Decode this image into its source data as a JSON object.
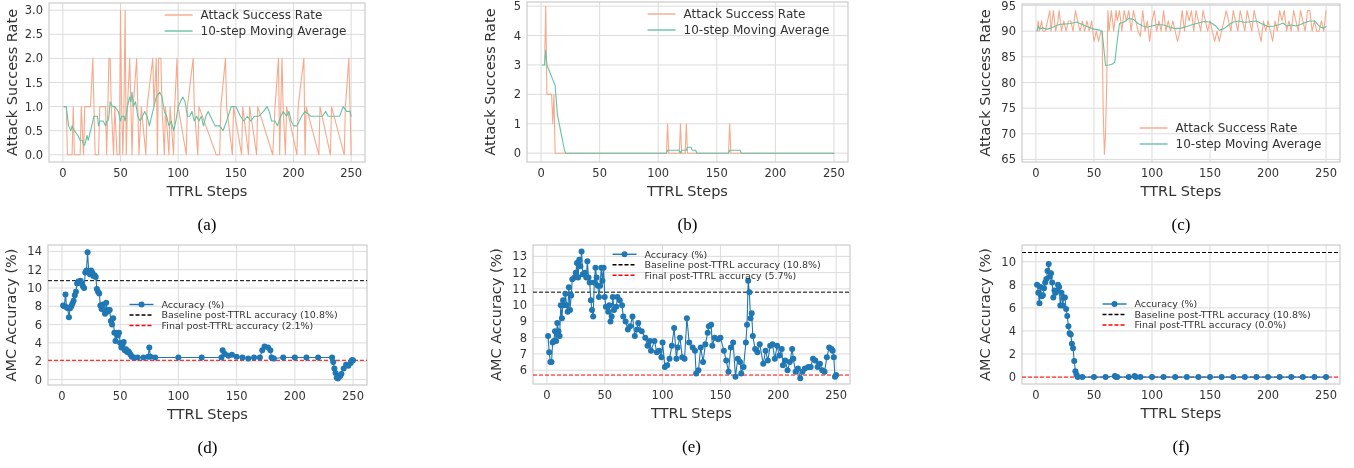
{
  "chart_data": [
    {
      "type": "line",
      "xlabel": "TTRL Steps",
      "ylabel": "Attack Success Rate",
      "xlim": [
        -12,
        262
      ],
      "xticks": [
        0,
        50,
        100,
        150,
        200,
        250
      ],
      "ylim": [
        -0.15,
        3.15
      ],
      "yticks": [
        {
          "value": 0,
          "label": "0.0"
        },
        {
          "value": 0.5,
          "label": "0.5"
        },
        {
          "value": 1,
          "label": "1.0"
        },
        {
          "value": 1.5,
          "label": "1.5"
        },
        {
          "value": 2,
          "label": "2.0"
        },
        {
          "value": 2.5,
          "label": "2.5"
        },
        {
          "value": 3,
          "label": "3.0"
        }
      ],
      "grid": true,
      "legend": "top right",
      "annotations": [
        "(a)"
      ],
      "series": [
        {
          "name": "Attack Success Rate",
          "color": "#f7a98b",
          "x": [
            1,
            3,
            4,
            8,
            9,
            10,
            15,
            16,
            18,
            19,
            24,
            26,
            27,
            28,
            31,
            32,
            37,
            38,
            39,
            40,
            41,
            42,
            44,
            45,
            47,
            49,
            50,
            51,
            52,
            53,
            54,
            55,
            56,
            58,
            59,
            60,
            61,
            64,
            65,
            66,
            68,
            72,
            73,
            78,
            79,
            81,
            82,
            83,
            85,
            86,
            88,
            89,
            92,
            93,
            96,
            97,
            99,
            100,
            107,
            108,
            113,
            114,
            117,
            118,
            133,
            136,
            137,
            141,
            142,
            147,
            148,
            155,
            156,
            161,
            162,
            168,
            169,
            182,
            184,
            187,
            188,
            190,
            191,
            193,
            194,
            203,
            204,
            209,
            210,
            211,
            222,
            223,
            232,
            233,
            244,
            245,
            248,
            249,
            250
          ],
          "values": [
            1,
            1,
            0,
            0,
            1,
            0,
            0,
            1,
            0,
            1,
            1,
            2,
            1,
            0,
            0,
            1,
            1,
            0,
            1,
            2,
            2,
            1,
            0,
            1,
            0,
            0,
            3,
            1,
            0,
            1,
            3,
            0,
            1,
            2,
            1,
            0,
            1,
            2,
            1,
            0,
            1,
            0,
            1,
            2,
            1,
            2,
            0,
            2,
            2,
            1,
            0,
            1,
            0,
            1,
            0,
            1,
            2,
            1,
            0,
            1,
            2,
            1,
            0,
            1,
            0,
            0,
            1,
            2,
            1,
            0,
            1,
            0,
            1,
            0,
            1,
            0,
            1,
            0,
            1,
            2,
            0,
            2,
            1,
            0,
            1,
            0,
            1,
            2,
            0,
            1,
            0,
            1,
            0,
            1,
            0,
            1,
            2,
            1,
            0
          ]
        },
        {
          "name": "10-step Moving Average",
          "color": "#66c2a5",
          "x": [
            1,
            3,
            5,
            7,
            8,
            10,
            13,
            15,
            17,
            18,
            19,
            21,
            22,
            25,
            27,
            30,
            31,
            32,
            35,
            37,
            38,
            39,
            40,
            41,
            43,
            45,
            48,
            50,
            51,
            53,
            54,
            56,
            58,
            59,
            60,
            61,
            63,
            65,
            67,
            69,
            71,
            73,
            75,
            77,
            79,
            81,
            84,
            86,
            88,
            90,
            92,
            94,
            96,
            98,
            100,
            102,
            104,
            106,
            108,
            110,
            112,
            114,
            116,
            118,
            120,
            122,
            124,
            126,
            128,
            132,
            136,
            139,
            142,
            146,
            150,
            154,
            157,
            160,
            163,
            166,
            170,
            174,
            177,
            179,
            181,
            184,
            186,
            189,
            191,
            194,
            196,
            198,
            200,
            203,
            207,
            210,
            215,
            225,
            228,
            230,
            240,
            243,
            246,
            249,
            250
          ],
          "values": [
            1,
            1,
            0.6,
            0.5,
            0.6,
            0.5,
            0.4,
            0.3,
            0.3,
            0.2,
            0.2,
            0.4,
            0.3,
            0.6,
            0.8,
            0.8,
            0.6,
            0.7,
            0.7,
            0.6,
            0.7,
            0.7,
            0.8,
            1.1,
            1.0,
            1.0,
            0.9,
            0.7,
            0.8,
            0.8,
            0.7,
            1.0,
            1.2,
            1.1,
            1.3,
            1.0,
            1.1,
            0.8,
            0.7,
            0.8,
            0.9,
            0.8,
            0.6,
            0.8,
            1.0,
            1.2,
            1.3,
            1.2,
            0.9,
            0.8,
            0.6,
            0.7,
            0.5,
            0.7,
            1.0,
            1.1,
            1.2,
            1.1,
            0.8,
            0.8,
            0.9,
            0.7,
            0.8,
            0.7,
            0.8,
            0.6,
            0.8,
            0.9,
            0.8,
            0.6,
            0.6,
            0.5,
            0.7,
            1.0,
            1.0,
            0.8,
            0.7,
            0.8,
            0.7,
            0.8,
            0.8,
            0.9,
            1.0,
            0.9,
            0.7,
            0.7,
            0.6,
            0.8,
            0.9,
            0.8,
            0.9,
            0.7,
            0.6,
            0.6,
            0.8,
            0.9,
            0.8,
            0.8,
            0.9,
            0.8,
            0.8,
            1.0,
            0.9,
            0.9,
            0.8
          ]
        }
      ]
    },
    {
      "type": "line",
      "xlabel": "TTRL Steps",
      "ylabel": "Attack Success Rate",
      "xlim": [
        -12,
        262
      ],
      "xticks": [
        0,
        50,
        100,
        150,
        200,
        250
      ],
      "ylim": [
        -0.3,
        5.14
      ],
      "yticks": [
        0,
        1,
        2,
        3,
        4,
        5
      ],
      "grid": true,
      "legend": "top right",
      "annotations": [
        "(b)"
      ],
      "series": [
        {
          "name": "Attack Success Rate",
          "color": "#f7a98b",
          "x": [
            3,
            4,
            5,
            9,
            10,
            11,
            12,
            107,
            108,
            109,
            118,
            119,
            120,
            123,
            124,
            125,
            160,
            161,
            162,
            250
          ],
          "values": [
            3,
            5,
            2,
            2,
            1,
            2,
            0,
            0,
            1,
            0,
            0,
            1,
            0,
            0,
            1,
            0,
            0,
            1,
            0,
            0
          ]
        },
        {
          "name": "10-step Moving Average",
          "color": "#66c2a5",
          "x": [
            1,
            3,
            4,
            5,
            8,
            10,
            12,
            14,
            17,
            20,
            21,
            107,
            108,
            118,
            119,
            120,
            124,
            125,
            128,
            129,
            132,
            133,
            160,
            161,
            170,
            171,
            250
          ],
          "values": [
            3,
            3,
            3.5,
            3,
            2.7,
            2.5,
            2.3,
            1.3,
            0.7,
            0.1,
            0,
            0,
            0.1,
            0.1,
            0,
            0.1,
            0.1,
            0.2,
            0.2,
            0.1,
            0.1,
            0,
            0,
            0.1,
            0.1,
            0,
            0
          ]
        }
      ]
    },
    {
      "type": "line",
      "xlabel": "TTRL Steps",
      "ylabel": "Attack Success Rate",
      "xlim": [
        -12,
        262
      ],
      "xticks": [
        0,
        50,
        100,
        150,
        200,
        250
      ],
      "ylim": [
        64.5,
        95.3
      ],
      "yticks": [
        65,
        70,
        75,
        80,
        85,
        90,
        95
      ],
      "grid": true,
      "legend": "bottom right",
      "annotations": [
        "(c)"
      ],
      "series": [
        {
          "name": "Attack Success Rate",
          "color": "#f7a98b",
          "x": [
            1,
            2,
            3,
            5,
            6,
            8,
            10,
            12,
            13,
            15,
            17,
            19,
            20,
            22,
            24,
            26,
            28,
            30,
            32,
            34,
            36,
            38,
            40,
            42,
            44,
            46,
            48,
            50,
            52,
            54,
            56,
            57,
            58,
            59,
            60,
            61,
            62,
            63,
            65,
            67,
            69,
            70,
            72,
            74,
            76,
            78,
            80,
            82,
            84,
            86,
            88,
            90,
            92,
            94,
            96,
            98,
            100,
            102,
            104,
            106,
            108,
            110,
            112,
            114,
            116,
            118,
            120,
            122,
            124,
            126,
            128,
            130,
            132,
            134,
            136,
            138,
            140,
            142,
            144,
            146,
            148,
            150,
            152,
            154,
            156,
            158,
            160,
            162,
            164,
            166,
            168,
            170,
            172,
            174,
            176,
            178,
            180,
            182,
            184,
            186,
            188,
            190,
            192,
            194,
            196,
            198,
            200,
            202,
            204,
            206,
            208,
            210,
            212,
            214,
            216,
            218,
            220,
            222,
            224,
            226,
            228,
            230,
            232,
            234,
            236,
            238,
            240,
            242,
            244,
            246,
            248,
            250
          ],
          "values": [
            90,
            92,
            90,
            92,
            90,
            90,
            92,
            94,
            90,
            94,
            90,
            92,
            94,
            90,
            92,
            90,
            92,
            92,
            90,
            94,
            92,
            90,
            92,
            90,
            92,
            90,
            92,
            88,
            90,
            88,
            90,
            90,
            74,
            66,
            70,
            80,
            94,
            90,
            94,
            90,
            94,
            92,
            94,
            90,
            94,
            92,
            94,
            90,
            94,
            92,
            90,
            89,
            94,
            90,
            92,
            88,
            92,
            94,
            90,
            92,
            90,
            94,
            90,
            92,
            90,
            92,
            90,
            88,
            90,
            94,
            90,
            94,
            92,
            94,
            90,
            94,
            92,
            90,
            94,
            92,
            90,
            92,
            90,
            88,
            90,
            88,
            90,
            92,
            94,
            92,
            90,
            94,
            92,
            90,
            94,
            92,
            90,
            94,
            92,
            90,
            94,
            92,
            90,
            88,
            92,
            90,
            92,
            90,
            88,
            92,
            90,
            94,
            92,
            94,
            90,
            92,
            90,
            94,
            92,
            90,
            94,
            92,
            90,
            94,
            94,
            90,
            92,
            90,
            90,
            92,
            90,
            94
          ]
        },
        {
          "name": "10-step Moving Average",
          "color": "#66c2a5",
          "x": [
            1,
            2,
            3,
            6,
            10,
            15,
            20,
            25,
            30,
            35,
            40,
            45,
            50,
            55,
            57,
            60,
            63,
            66,
            68,
            70,
            72,
            76,
            80,
            84,
            88,
            92,
            96,
            100,
            105,
            110,
            115,
            120,
            125,
            130,
            135,
            140,
            145,
            150,
            155,
            158,
            162,
            166,
            170,
            175,
            180,
            185,
            190,
            195,
            200,
            205,
            210,
            213,
            216,
            220,
            224,
            228,
            232,
            236,
            240,
            245,
            248,
            250
          ],
          "values": [
            90,
            91,
            90.5,
            90.6,
            90.4,
            90.8,
            91.3,
            91.4,
            91.5,
            91.8,
            91.3,
            90.8,
            90.4,
            90.2,
            90,
            83.3,
            83.4,
            83.6,
            84,
            88,
            91.5,
            91.8,
            92.5,
            92.3,
            91.5,
            91.0,
            90.8,
            91.0,
            91.3,
            91.2,
            90.8,
            90.5,
            90.6,
            90.9,
            91.3,
            91.6,
            91.9,
            91.8,
            91,
            90.2,
            90.5,
            91.2,
            91.8,
            92,
            91.7,
            91.9,
            92.0,
            91.4,
            90.9,
            91.0,
            91.3,
            91.6,
            91.0,
            91.2,
            91.0,
            91.3,
            91.7,
            92.0,
            92.0,
            90.8,
            90.6,
            90.9
          ]
        }
      ]
    },
    {
      "type": "line",
      "xlabel": "TTRL Steps",
      "ylabel": "AMC Accuracy (%)",
      "xlim": [
        -12,
        262
      ],
      "xticks": [
        0,
        50,
        100,
        150,
        200,
        250
      ],
      "ylim": [
        -0.6,
        14.7
      ],
      "yticks": [
        0,
        2,
        4,
        6,
        8,
        10,
        12,
        14
      ],
      "grid": true,
      "legend": "right",
      "marker": "circle",
      "annotations": [
        "(d)"
      ],
      "ref_lines": [
        {
          "axis": "y",
          "value": 10.8,
          "label": "Baseline post-TTRL accuracy (10.8%)",
          "color": "#000000",
          "line_style": "dashed"
        },
        {
          "axis": "y",
          "value": 2.1,
          "label": "Final post-TTRL accuracy (2.1%)",
          "color": "#ff0000",
          "line_style": "dashed"
        }
      ],
      "series": [
        {
          "name": "Accuracy (%)",
          "color": "#1f77b4",
          "x": [
            1,
            2,
            3,
            4,
            5,
            6,
            7,
            8,
            9,
            10,
            11,
            12,
            13,
            14,
            15,
            16,
            17,
            18,
            19,
            20,
            21,
            22,
            23,
            24,
            25,
            26,
            27,
            28,
            29,
            30,
            31,
            32,
            33,
            34,
            35,
            36,
            37,
            38,
            39,
            40,
            41,
            42,
            43,
            44,
            45,
            46,
            47,
            48,
            49,
            50,
            51,
            52,
            53,
            54,
            55,
            56,
            57,
            58,
            59,
            60,
            62,
            65,
            70,
            74,
            75,
            76,
            80,
            100,
            120,
            137,
            138,
            140,
            143,
            146,
            150,
            155,
            160,
            165,
            170,
            172,
            174,
            177,
            179,
            180,
            182,
            190,
            200,
            210,
            220,
            232,
            233,
            234,
            235,
            236,
            237,
            238,
            239,
            240,
            242,
            244,
            246,
            248,
            249,
            250
          ],
          "values": [
            8.1,
            8.0,
            9.3,
            7.9,
            7.8,
            6.8,
            7.8,
            8.0,
            8.3,
            8.6,
            9.2,
            9.6,
            10.5,
            10.7,
            10.6,
            10.8,
            10.5,
            10.2,
            10.0,
            11.7,
            11.9,
            13.9,
            11.8,
            11.5,
            11.9,
            11.7,
            11.3,
            11.4,
            11.2,
            9.9,
            9.6,
            9.4,
            8.1,
            7.7,
            8.2,
            7.6,
            7.2,
            8.4,
            7.4,
            7.6,
            7.6,
            6.4,
            6.0,
            6.7,
            5.1,
            4.2,
            5.1,
            4.8,
            5.1,
            4.0,
            3.5,
            3.8,
            4.1,
            3.2,
            3.3,
            3.0,
            3.1,
            2.9,
            2.7,
            2.5,
            2.4,
            2.4,
            2.4,
            2.5,
            3.5,
            2.5,
            2.4,
            2.4,
            2.4,
            2.4,
            3.2,
            2.8,
            2.6,
            2.7,
            2.5,
            2.4,
            2.3,
            2.4,
            2.4,
            3.2,
            3.6,
            3.5,
            3.2,
            2.4,
            2.3,
            2.4,
            2.4,
            2.4,
            2.4,
            2.4,
            1.9,
            1.2,
            0.7,
            0.2,
            0.1,
            0.3,
            0.4,
            0.6,
            1.2,
            1.6,
            1.5,
            1.8,
            2.1,
            2.1
          ]
        }
      ]
    },
    {
      "type": "line",
      "xlabel": "TTRL Steps",
      "ylabel": "AMC Accuracy (%)",
      "xlim": [
        -12,
        262
      ],
      "xticks": [
        0,
        50,
        100,
        150,
        200,
        250
      ],
      "ylim": [
        5.15,
        13.7
      ],
      "yticks": [
        6,
        7,
        8,
        9,
        10,
        11,
        12,
        13
      ],
      "grid": true,
      "legend": "top right",
      "marker": "circle",
      "annotations": [
        "(e)"
      ],
      "ref_lines": [
        {
          "axis": "y",
          "value": 10.8,
          "label": "Baseline post-TTRL accuracy (10.8%)",
          "color": "#000000",
          "line_style": "dashed"
        },
        {
          "axis": "y",
          "value": 5.7,
          "label": "Final post-TTRL accuracy (5.7%)",
          "color": "#ff0000",
          "line_style": "dashed"
        }
      ],
      "series": [
        {
          "name": "Accuracy (%)",
          "color": "#1f77b4",
          "x": [
            1,
            2,
            3,
            4,
            5,
            6,
            7,
            8,
            9,
            10,
            11,
            12,
            13,
            14,
            15,
            16,
            17,
            18,
            19,
            20,
            21,
            22,
            24,
            25,
            26,
            27,
            28,
            29,
            30,
            31,
            33,
            34,
            35,
            36,
            37,
            38,
            39,
            40,
            41,
            42,
            43,
            44,
            45,
            46,
            47,
            48,
            49,
            50,
            51,
            53,
            54,
            55,
            56,
            57,
            58,
            60,
            61,
            63,
            65,
            66,
            68,
            70,
            72,
            74,
            76,
            78,
            79,
            82,
            85,
            87,
            89,
            90,
            93,
            95,
            97,
            99,
            100,
            102,
            104,
            106,
            108,
            110,
            112,
            113,
            115,
            117,
            119,
            121,
            123,
            126,
            128,
            129,
            131,
            133,
            135,
            137,
            139,
            140,
            142,
            143,
            145,
            148,
            150,
            153,
            155,
            157,
            159,
            161,
            163,
            165,
            167,
            168,
            170,
            172,
            173,
            174,
            175,
            176,
            177,
            178,
            180,
            182,
            184,
            187,
            189,
            191,
            193,
            195,
            197,
            199,
            201,
            203,
            204,
            206,
            208,
            210,
            212,
            213,
            215,
            217,
            219,
            221,
            223,
            226,
            228,
            230,
            232,
            234,
            236,
            238,
            240,
            242,
            244,
            246,
            247,
            248,
            249,
            250
          ],
          "values": [
            8.1,
            7.1,
            6.5,
            6.5,
            7.7,
            7.8,
            8.4,
            7.8,
            8.9,
            8.4,
            8.1,
            10.0,
            9.2,
            10.3,
            10.0,
            10.7,
            10.0,
            9.6,
            11.1,
            9.7,
            10.6,
            11.6,
            11.7,
            12.0,
            12.6,
            11.7,
            12.8,
            12.4,
            13.3,
            11.9,
            12.0,
            11.7,
            12.7,
            11.7,
            11.4,
            10.3,
            9.7,
            9.3,
            11.4,
            12.3,
            11.7,
            11.2,
            10.5,
            11.2,
            12.3,
            11.5,
            12.3,
            10.5,
            9.9,
            9.6,
            10.0,
            9.0,
            9.3,
            10.5,
            9.7,
            9.9,
            10.5,
            10.3,
            10.0,
            9.3,
            9.0,
            8.5,
            8.7,
            9.3,
            8.1,
            8.5,
            8.9,
            8.4,
            8.0,
            7.5,
            7.8,
            7.2,
            7.8,
            7.1,
            7.2,
            6.8,
            7.7,
            6.2,
            6.3,
            6.7,
            7.5,
            8.6,
            6.7,
            7.4,
            8.0,
            6.8,
            6.7,
            9.2,
            7.7,
            7.4,
            7.2,
            5.8,
            6.0,
            7.4,
            6.5,
            7.6,
            8.3,
            8.7,
            8.8,
            7.5,
            8.0,
            7.9,
            8.0,
            7.2,
            6.6,
            5.9,
            7.4,
            7.7,
            5.6,
            6.7,
            6.5,
            5.8,
            6.2,
            7.7,
            8.8,
            11.5,
            10.8,
            9.2,
            9.5,
            8.1,
            7.3,
            7.1,
            7.6,
            6.4,
            7.2,
            6.6,
            7.5,
            7.6,
            6.7,
            7.5,
            6.9,
            7.3,
            6.3,
            6.6,
            6.0,
            6.5,
            7.3,
            6.7,
            5.9,
            6.1,
            5.5,
            5.9,
            6.1,
            6.2,
            6.2,
            6.7,
            6.6,
            6.2,
            6.4,
            6.0,
            5.9,
            6.8,
            7.4,
            7.3,
            7.2,
            6.8,
            5.6,
            5.7
          ]
        }
      ]
    },
    {
      "type": "line",
      "xlabel": "TTRL Steps",
      "ylabel": "AMC Accuracy (%)",
      "xlim": [
        -12,
        262
      ],
      "xticks": [
        0,
        50,
        100,
        150,
        200,
        250
      ],
      "ylim": [
        -0.6,
        11.45
      ],
      "yticks": [
        0,
        2,
        4,
        6,
        8,
        10
      ],
      "grid": true,
      "legend": "right",
      "marker": "circle",
      "annotations": [
        "(f)"
      ],
      "ref_lines": [
        {
          "axis": "y",
          "value": 10.8,
          "label": "Baseline post-TTRL accuracy (10.8%)",
          "color": "#000000",
          "line_style": "dashed"
        },
        {
          "axis": "y",
          "value": 0,
          "label": "Final post-TTRL accuracy (0.0%)",
          "color": "#ff0000",
          "line_style": "dashed"
        }
      ],
      "series": [
        {
          "name": "Accuracy (%)",
          "color": "#1f77b4",
          "x": [
            1,
            2,
            3,
            4,
            5,
            6,
            7,
            8,
            9,
            10,
            11,
            12,
            13,
            14,
            15,
            16,
            17,
            18,
            19,
            20,
            21,
            22,
            23,
            24,
            25,
            26,
            27,
            28,
            29,
            30,
            31,
            32,
            33,
            34,
            35,
            36,
            40,
            50,
            60,
            68,
            69,
            70,
            80,
            85,
            86,
            90,
            100,
            110,
            120,
            130,
            140,
            150,
            160,
            170,
            180,
            190,
            200,
            210,
            220,
            230,
            240,
            250
          ],
          "values": [
            8.0,
            7.3,
            6.4,
            7.8,
            7.0,
            7.1,
            7.7,
            8.2,
            8.5,
            9.2,
            9.8,
            8.7,
            9.0,
            8.2,
            6.9,
            7.5,
            7.3,
            7.5,
            8.0,
            7.8,
            6.2,
            7.3,
            6.2,
            6.9,
            6.9,
            5.9,
            5.3,
            4.4,
            3.8,
            3.7,
            2.9,
            2.5,
            1.4,
            0.5,
            0.2,
            0,
            0,
            0,
            0,
            0.1,
            0,
            0,
            0,
            0.1,
            0,
            0,
            0,
            0,
            0,
            0,
            0,
            0,
            0,
            0,
            0,
            0,
            0,
            0,
            0,
            0,
            0,
            0
          ]
        }
      ]
    }
  ]
}
